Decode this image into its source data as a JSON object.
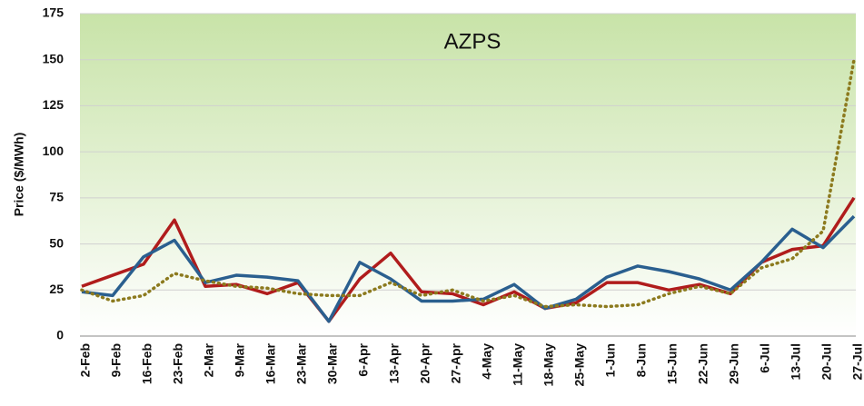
{
  "chart_data": {
    "type": "line",
    "title": "AZPS",
    "y_label": "Price ($/MWh)",
    "categories": [
      "2-Feb",
      "9-Feb",
      "16-Feb",
      "23-Feb",
      "2-Mar",
      "9-Mar",
      "16-Mar",
      "23-Mar",
      "30-Mar",
      "6-Apr",
      "13-Apr",
      "20-Apr",
      "27-Apr",
      "4-May",
      "11-May",
      "18-May",
      "25-May",
      "1-Jun",
      "8-Jun",
      "15-Jun",
      "22-Jun",
      "29-Jun",
      "6-Jul",
      "13-Jul",
      "20-Jul",
      "27-Jul"
    ],
    "series": [
      {
        "color": "#b01c1c",
        "line_style": "solid",
        "values": [
          27,
          33,
          39,
          63,
          27,
          28,
          23,
          29,
          8,
          31,
          45,
          24,
          23,
          17,
          24,
          15,
          18,
          29,
          29,
          25,
          28,
          23,
          40,
          47,
          49,
          75
        ]
      },
      {
        "color": "#2a5f8f",
        "line_style": "solid",
        "values": [
          24,
          22,
          43,
          52,
          29,
          33,
          32,
          30,
          8,
          40,
          31,
          19,
          19,
          20,
          28,
          15,
          20,
          32,
          38,
          35,
          31,
          25,
          40,
          58,
          48,
          65
        ]
      },
      {
        "color": "#8c7a1e",
        "line_style": "dotted",
        "values": [
          25,
          19,
          22,
          34,
          30,
          27,
          26,
          23,
          22,
          22,
          29,
          22,
          25,
          19,
          22,
          16,
          17,
          16,
          17,
          23,
          27,
          23,
          37,
          42,
          57,
          150
        ]
      }
    ],
    "ylim": [
      0,
      175
    ],
    "yticks": [
      0,
      25,
      50,
      75,
      100,
      125,
      150,
      175
    ],
    "grid": true
  }
}
